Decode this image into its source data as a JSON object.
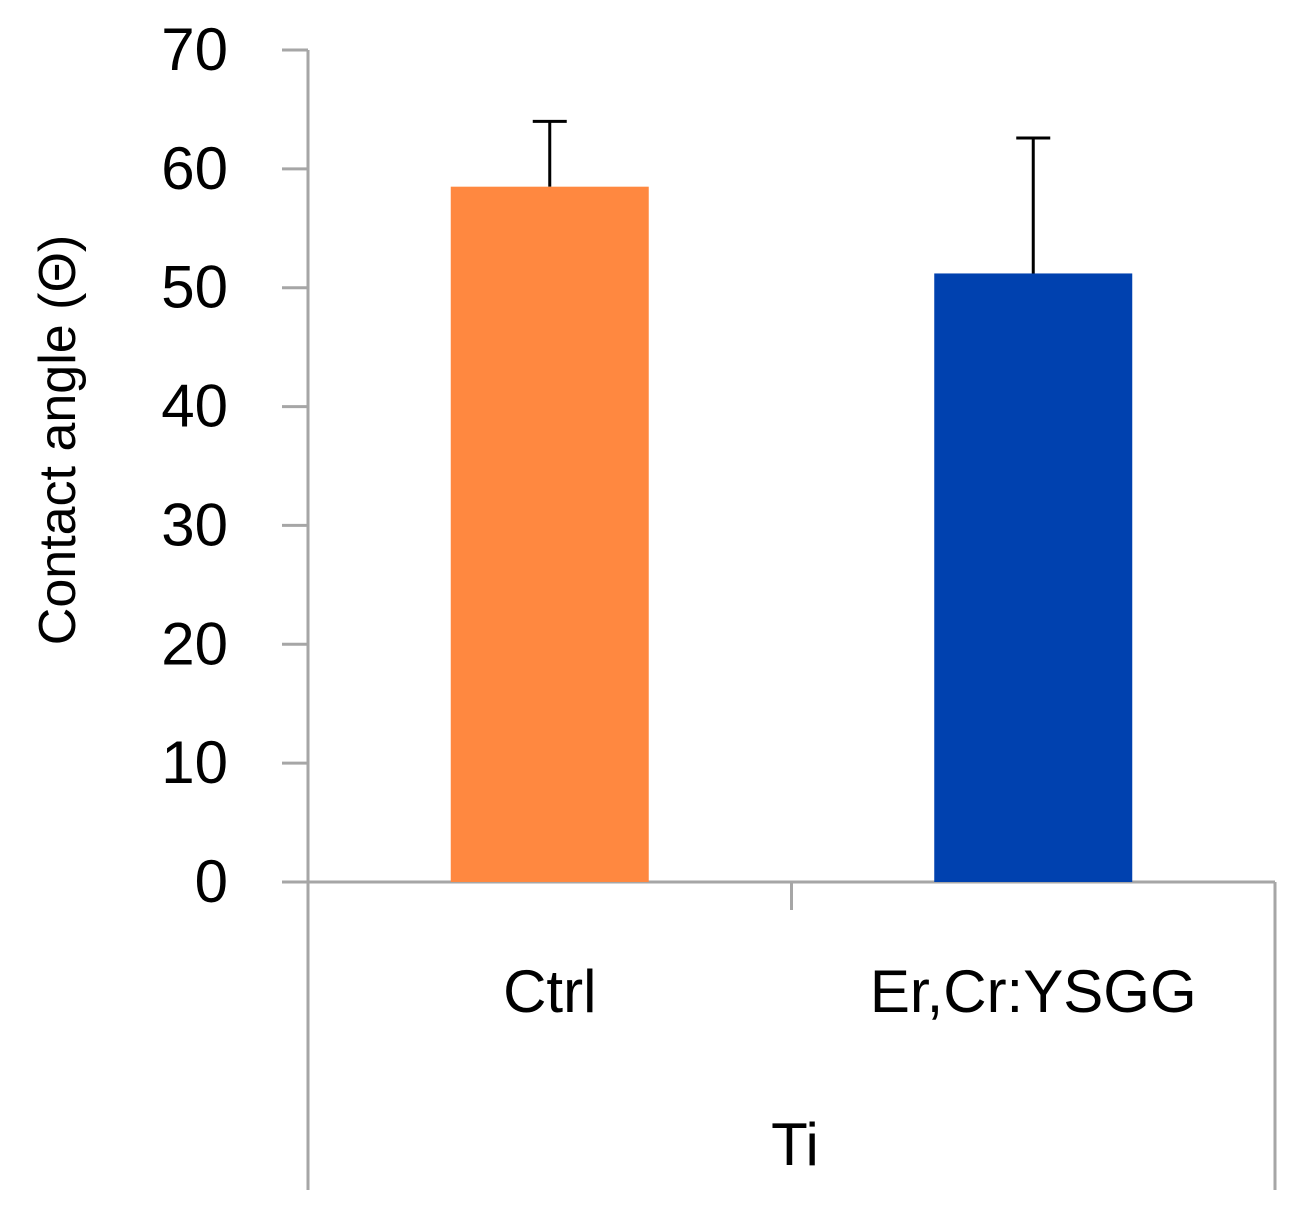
{
  "chart_data": {
    "type": "bar",
    "title": "",
    "xlabel": "",
    "ylabel": "Contact angle (Θ)",
    "ylim": [
      0,
      70
    ],
    "yticks": [
      0,
      10,
      20,
      30,
      40,
      50,
      60,
      70
    ],
    "grid": false,
    "legend": "none",
    "group_label": "Ti",
    "categories": [
      "Ctrl",
      "Er,Cr:YSGG"
    ],
    "values": [
      58.5,
      51.2
    ],
    "errors": [
      5.5,
      11.4
    ],
    "colors": [
      "#FF8840",
      "#0041AF"
    ],
    "axis_color": "#A6A6A6",
    "error_bar_color": "#000000"
  }
}
